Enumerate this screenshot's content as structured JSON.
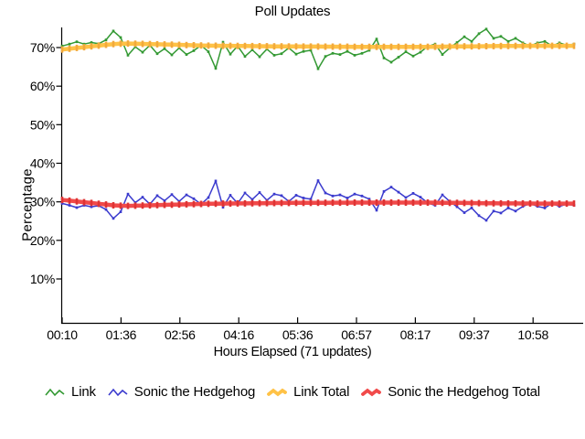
{
  "chart": {
    "title": "Poll Updates",
    "xlabel": "Hours Elapsed (71 updates)",
    "ylabel": "Percentage"
  },
  "colors": {
    "background": "#FFFFFF",
    "axis": "#000000",
    "text": "#000000"
  },
  "chart_data": {
    "type": "line",
    "title": "Poll Updates",
    "xlabel": "Hours Elapsed (71 updates)",
    "ylabel": "Percentage",
    "grid": false,
    "legend_position": "bottom",
    "n_points": 71,
    "x_tick_labels": [
      "00:10",
      "01:36",
      "02:56",
      "04:16",
      "05:36",
      "06:57",
      "08:17",
      "09:37",
      "10:58"
    ],
    "y_ticks": [
      {
        "v": 70,
        "label": "70%"
      },
      {
        "v": 60,
        "label": "60%"
      },
      {
        "v": 50,
        "label": "50%"
      },
      {
        "v": 40,
        "label": "40%"
      },
      {
        "v": 30,
        "label": "30%"
      },
      {
        "v": 20,
        "label": "20%"
      },
      {
        "v": 10,
        "label": "10%"
      }
    ],
    "ylim": [
      -1.5,
      74.2
    ],
    "series": [
      {
        "id": "link",
        "name": "Link",
        "color": "#339933",
        "width": 1.5,
        "marker": "square-small",
        "values": [
          70.4,
          70.9,
          71.5,
          70.9,
          71.3,
          71.0,
          72.0,
          74.3,
          72.6,
          68.0,
          70.2,
          68.8,
          70.6,
          68.4,
          69.7,
          68.1,
          69.9,
          68.2,
          69.2,
          70.6,
          68.9,
          64.6,
          71.4,
          68.3,
          70.4,
          67.7,
          69.4,
          67.6,
          69.6,
          68.0,
          68.4,
          69.9,
          68.3,
          69.0,
          69.3,
          64.5,
          67.7,
          68.5,
          68.2,
          69.0,
          68.0,
          68.5,
          69.3,
          72.2,
          67.3,
          66.2,
          67.5,
          68.9,
          67.8,
          68.8,
          70.3,
          70.9,
          68.2,
          69.9,
          71.3,
          72.8,
          71.6,
          73.6,
          74.8,
          72.4,
          72.9,
          71.6,
          72.4,
          71.2,
          70.4,
          71.2,
          71.6,
          70.4,
          71.2,
          70.6,
          70.9
        ]
      },
      {
        "id": "sonic-the-hedgehog",
        "name": "Sonic the Hedgehog",
        "color": "#3B3BCE",
        "width": 1.5,
        "marker": "square-small",
        "values": [
          29.6,
          29.1,
          28.5,
          29.1,
          28.7,
          29.0,
          28.0,
          25.7,
          27.4,
          32.0,
          29.8,
          31.2,
          29.4,
          31.6,
          30.3,
          31.9,
          30.1,
          31.8,
          30.8,
          29.4,
          31.1,
          35.4,
          28.6,
          31.7,
          29.6,
          32.3,
          30.6,
          32.4,
          30.4,
          32.0,
          31.6,
          30.1,
          31.7,
          31.0,
          30.7,
          35.5,
          32.3,
          31.5,
          31.8,
          31.0,
          32.0,
          31.5,
          30.7,
          27.8,
          32.7,
          33.8,
          32.5,
          31.1,
          32.2,
          31.2,
          29.7,
          29.1,
          31.8,
          30.1,
          28.7,
          27.2,
          28.4,
          26.4,
          25.2,
          27.6,
          27.1,
          28.4,
          27.6,
          28.8,
          29.6,
          28.8,
          28.4,
          29.6,
          28.8,
          29.4,
          29.1
        ]
      },
      {
        "id": "link-total",
        "name": "Link Total",
        "color": "#FFC246",
        "marker_color": "#F2A93C",
        "width": 4.5,
        "marker": "tick-dash",
        "values": [
          69.5,
          69.7,
          69.9,
          70.1,
          70.3,
          70.5,
          70.7,
          70.9,
          71.0,
          71.05,
          71.0,
          70.95,
          70.9,
          70.85,
          70.8,
          70.75,
          70.7,
          70.65,
          70.6,
          70.55,
          70.5,
          70.48,
          70.46,
          70.44,
          70.42,
          70.4,
          70.38,
          70.36,
          70.34,
          70.32,
          70.3,
          70.29,
          70.28,
          70.27,
          70.26,
          70.25,
          70.24,
          70.23,
          70.22,
          70.21,
          70.2,
          70.2,
          70.2,
          70.2,
          70.2,
          70.2,
          70.2,
          70.2,
          70.2,
          70.2,
          70.2,
          70.22,
          70.24,
          70.26,
          70.28,
          70.3,
          70.32,
          70.34,
          70.36,
          70.38,
          70.4,
          70.41,
          70.42,
          70.43,
          70.44,
          70.45,
          70.45,
          70.45,
          70.45,
          70.45,
          70.45
        ]
      },
      {
        "id": "sonic-the-hedgehog-total",
        "name": "Sonic the Hedgehog Total",
        "color": "#F14A4A",
        "marker_color": "#DE3434",
        "width": 4.5,
        "marker": "tick-dash",
        "values": [
          30.5,
          30.3,
          30.1,
          29.9,
          29.7,
          29.5,
          29.3,
          29.1,
          29.0,
          28.95,
          29.0,
          29.05,
          29.1,
          29.15,
          29.2,
          29.25,
          29.3,
          29.35,
          29.4,
          29.45,
          29.5,
          29.52,
          29.54,
          29.56,
          29.58,
          29.6,
          29.62,
          29.64,
          29.66,
          29.68,
          29.7,
          29.71,
          29.72,
          29.73,
          29.74,
          29.75,
          29.76,
          29.77,
          29.78,
          29.79,
          29.8,
          29.8,
          29.8,
          29.8,
          29.8,
          29.8,
          29.8,
          29.8,
          29.8,
          29.8,
          29.8,
          29.78,
          29.76,
          29.74,
          29.72,
          29.7,
          29.68,
          29.66,
          29.64,
          29.62,
          29.6,
          29.59,
          29.58,
          29.57,
          29.56,
          29.55,
          29.55,
          29.55,
          29.55,
          29.55,
          29.55
        ]
      }
    ]
  }
}
